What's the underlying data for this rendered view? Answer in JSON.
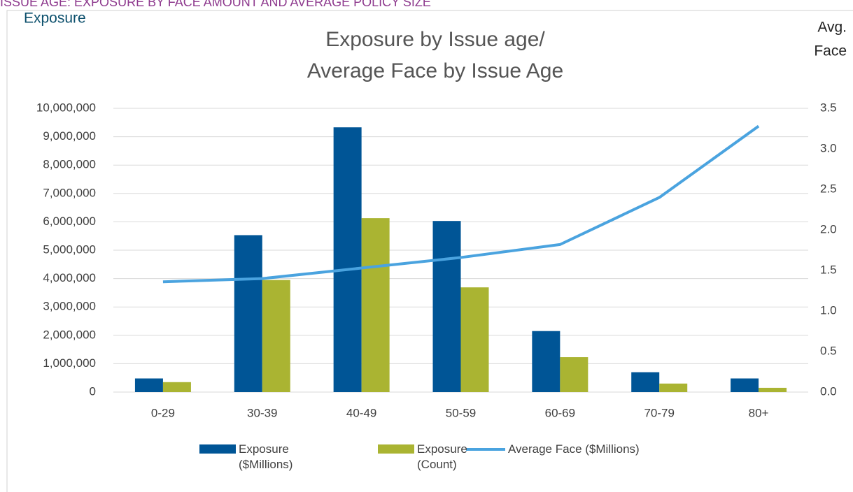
{
  "header": "ISSUE AGE: EXPOSURE BY FACE AMOUNT AND AVERAGE POLICY SIZE",
  "chart_data": {
    "type": "bar-line",
    "title": [
      "Exposure by Issue age/",
      "Average Face by Issue Age"
    ],
    "ylabel": "Exposure",
    "y2label": [
      "Avg.",
      "Face"
    ],
    "categories": [
      "0-29",
      "30-39",
      "40-49",
      "50-59",
      "60-69",
      "70-79",
      "80+"
    ],
    "series": [
      {
        "name": "Exposure ($Millions)",
        "type": "bar",
        "color": "#005596",
        "values": [
          480000,
          5530000,
          9330000,
          6030000,
          2150000,
          700000,
          480000
        ]
      },
      {
        "name": "Exposure (Count)",
        "type": "bar",
        "color": "#aab432",
        "values": [
          350000,
          3950000,
          6130000,
          3690000,
          1230000,
          300000,
          150000
        ]
      },
      {
        "name": "Average Face ($Millions)",
        "type": "line",
        "axis": "y2",
        "color": "#4aa3df",
        "values": [
          1.36,
          1.4,
          1.53,
          1.66,
          1.82,
          2.4,
          3.28
        ]
      }
    ],
    "ylim": [
      0,
      10000000
    ],
    "yticks": [
      0,
      {
        "value": 1000000,
        "label": "1,000,000"
      },
      {
        "value": 2000000,
        "label": "2,000,000"
      },
      {
        "value": 3000000,
        "label": "3,000,000"
      },
      {
        "value": 4000000,
        "label": "4,000,000"
      },
      {
        "value": 5000000,
        "label": "5,000,000"
      },
      {
        "value": 6000000,
        "label": "6,000,000"
      },
      {
        "value": 7000000,
        "label": "7,000,000"
      },
      {
        "value": 8000000,
        "label": "8,000,000"
      },
      {
        "value": 9000000,
        "label": "9,000,000"
      },
      {
        "value": 10000000,
        "label": "10,000,000"
      }
    ],
    "y2lim": [
      0,
      3.5
    ],
    "y2ticks": [
      {
        "value": 0,
        "label": "0.0"
      },
      0.5,
      {
        "value": 1,
        "label": "1.0"
      },
      1.5,
      {
        "value": 2,
        "label": "2.0"
      },
      2.5,
      {
        "value": 3,
        "label": "3.0"
      },
      3.5
    ],
    "grid": true,
    "legend": "bottom"
  }
}
